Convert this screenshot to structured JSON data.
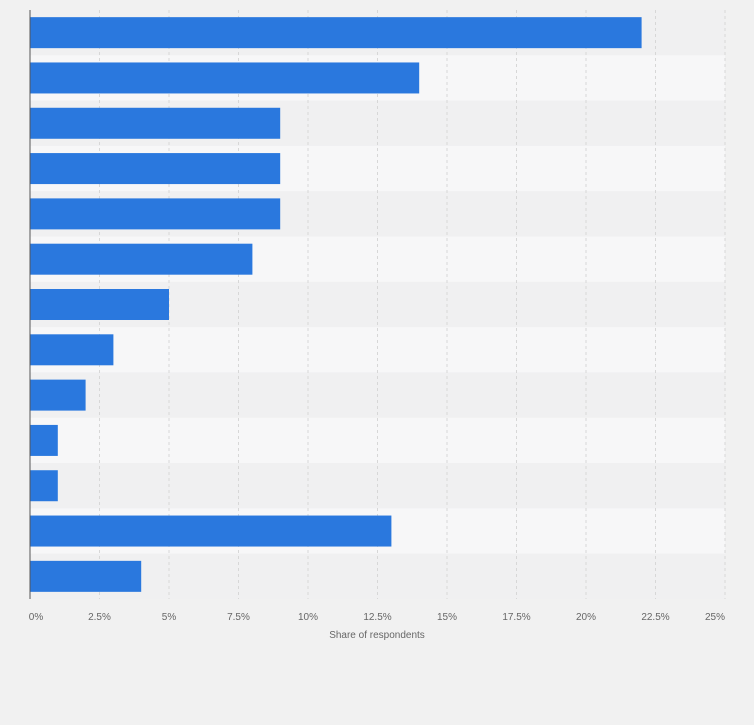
{
  "chart_data": {
    "type": "bar",
    "orientation": "horizontal",
    "categories": [
      "",
      "",
      "",
      "",
      "",
      "",
      "",
      "",
      "",
      "",
      "",
      "",
      ""
    ],
    "values": [
      22,
      14,
      9,
      9,
      9,
      8,
      5,
      3,
      2,
      1,
      1,
      13,
      4
    ],
    "title": "",
    "xlabel": "Share of respondents",
    "ylabel": "",
    "xlim": [
      0,
      25
    ],
    "xticks": [
      0,
      2.5,
      5,
      7.5,
      10,
      12.5,
      15,
      17.5,
      20,
      22.5,
      25
    ],
    "xtick_labels": [
      "0%",
      "2.5%",
      "5%",
      "7.5%",
      "10%",
      "12.5%",
      "15%",
      "17.5%",
      "20%",
      "22.5%",
      "25%"
    ],
    "grid": true,
    "legend": "none"
  },
  "colors": {
    "bar": "#2a78de",
    "background": "#f1f1f1",
    "band_light": "#f7f7f8",
    "band_dark": "#f0f0f1",
    "grid": "#d7d7d7",
    "axis": "#555555",
    "tick_text": "#666666"
  }
}
